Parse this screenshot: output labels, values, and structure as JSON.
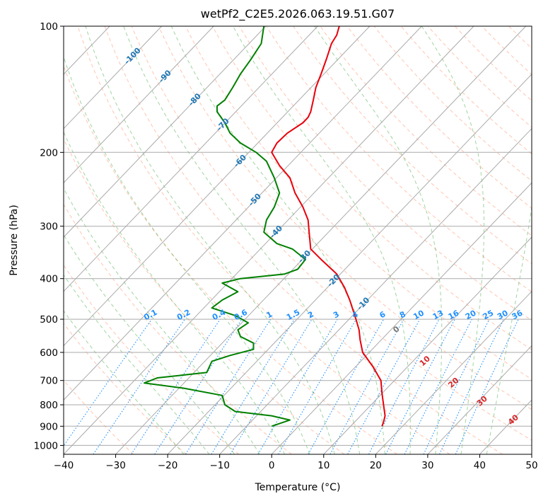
{
  "chart_data": {
    "type": "skew-t",
    "title": "wetPf2_C2E5.2026.063.19.51.G07",
    "xlabel": "Temperature (°C)",
    "ylabel": "Pressure (hPa)",
    "xlim": [
      -40,
      50
    ],
    "ylim": [
      1050,
      100
    ],
    "y_scale": "log",
    "grid": true,
    "x_ticks": [
      -40,
      -30,
      -20,
      -10,
      0,
      10,
      20,
      30,
      40,
      50
    ],
    "y_ticks": [
      100,
      200,
      300,
      400,
      500,
      600,
      700,
      800,
      900,
      1000
    ],
    "colors": {
      "temperature": "#e8000b",
      "dewpoint": "#008000",
      "isotherm_labels": "#1f77b4",
      "mixing_ratio": "#1e90ff",
      "dry_adiabat": "#ff7f50",
      "moist_adiabat": "#2ca02c",
      "grid": "#aaaaaa",
      "theta_e_label": "#d62728"
    },
    "series": [
      {
        "role": "temperature",
        "points": [
          [
            21.2,
            900
          ],
          [
            21.5,
            880
          ],
          [
            21.8,
            850
          ],
          [
            21.5,
            800
          ],
          [
            21.2,
            750
          ],
          [
            21.0,
            700
          ],
          [
            19.5,
            650
          ],
          [
            17.5,
            600
          ],
          [
            17.0,
            560
          ],
          [
            16.8,
            530
          ],
          [
            16.2,
            500
          ],
          [
            15.0,
            450
          ],
          [
            14.0,
            420
          ],
          [
            12.5,
            390
          ],
          [
            9.5,
            360
          ],
          [
            7.5,
            340
          ],
          [
            7.2,
            310
          ],
          [
            7.0,
            290
          ],
          [
            6.0,
            270
          ],
          [
            4.5,
            250
          ],
          [
            3.5,
            230
          ],
          [
            1.5,
            215
          ],
          [
            0.0,
            200
          ],
          [
            1.0,
            190
          ],
          [
            3.0,
            180
          ],
          [
            6.0,
            170
          ],
          [
            7.0,
            165
          ],
          [
            7.5,
            160
          ],
          [
            8.0,
            150
          ],
          [
            8.5,
            140
          ],
          [
            9.5,
            130
          ],
          [
            10.5,
            120
          ],
          [
            11.5,
            110
          ],
          [
            12.5,
            105
          ],
          [
            13.0,
            100
          ]
        ]
      },
      {
        "role": "dewpoint",
        "points": [
          [
            0.0,
            900
          ],
          [
            3.5,
            870
          ],
          [
            0.0,
            850
          ],
          [
            -7.0,
            830
          ],
          [
            -9.0,
            800
          ],
          [
            -9.5,
            760
          ],
          [
            -17.0,
            730
          ],
          [
            -24.5,
            710
          ],
          [
            -22.0,
            690
          ],
          [
            -12.5,
            670
          ],
          [
            -12.0,
            650
          ],
          [
            -11.5,
            630
          ],
          [
            -8.0,
            610
          ],
          [
            -3.5,
            590
          ],
          [
            -3.5,
            570
          ],
          [
            -6.0,
            550
          ],
          [
            -6.5,
            530
          ],
          [
            -4.5,
            510
          ],
          [
            -7.0,
            490
          ],
          [
            -11.5,
            470
          ],
          [
            -9.5,
            450
          ],
          [
            -6.5,
            430
          ],
          [
            -9.5,
            410
          ],
          [
            -6.0,
            400
          ],
          [
            2.5,
            390
          ],
          [
            5.0,
            380
          ],
          [
            6.5,
            360
          ],
          [
            4.0,
            340
          ],
          [
            1.0,
            330
          ],
          [
            -1.5,
            310
          ],
          [
            -1.0,
            290
          ],
          [
            0.5,
            270
          ],
          [
            1.5,
            250
          ],
          [
            0.5,
            230
          ],
          [
            -1.0,
            210
          ],
          [
            -3.0,
            200
          ],
          [
            -6.0,
            190
          ],
          [
            -8.0,
            180
          ],
          [
            -9.0,
            170
          ],
          [
            -10.5,
            160
          ],
          [
            -10.5,
            155
          ],
          [
            -9.0,
            150
          ],
          [
            -7.5,
            140
          ],
          [
            -6.0,
            130
          ],
          [
            -4.0,
            120
          ],
          [
            -2.0,
            110
          ],
          [
            -1.5,
            100
          ]
        ]
      }
    ],
    "isotherm_labels": [
      {
        "label": "-100",
        "t": -100,
        "p": 118
      },
      {
        "label": "-90",
        "t": -90,
        "p": 132
      },
      {
        "label": "-80",
        "t": -80,
        "p": 150
      },
      {
        "label": "-70",
        "t": -70,
        "p": 172
      },
      {
        "label": "-60",
        "t": -60,
        "p": 210
      },
      {
        "label": "-50",
        "t": -50,
        "p": 260
      },
      {
        "label": "-40",
        "t": -40,
        "p": 310
      },
      {
        "label": "-30",
        "t": -30,
        "p": 355
      },
      {
        "label": "-20",
        "t": -20,
        "p": 405
      },
      {
        "label": "-10",
        "t": -10,
        "p": 460
      }
    ],
    "mixing_ratio_labels": [
      "0.1",
      "0.2",
      "0.4",
      "0.6",
      "1",
      "1.5",
      "2",
      "3",
      "4",
      "6",
      "8",
      "10",
      "13",
      "16",
      "20",
      "25",
      "30",
      "36"
    ],
    "theta_e_labels": [
      {
        "label": "0",
        "t": 24.0,
        "p": 530
      },
      {
        "label": "10",
        "t": 29.5,
        "p": 630
      },
      {
        "label": "20",
        "t": 35.0,
        "p": 710
      },
      {
        "label": "30",
        "t": 40.5,
        "p": 785
      },
      {
        "label": "40",
        "t": 46.5,
        "p": 870
      }
    ]
  }
}
